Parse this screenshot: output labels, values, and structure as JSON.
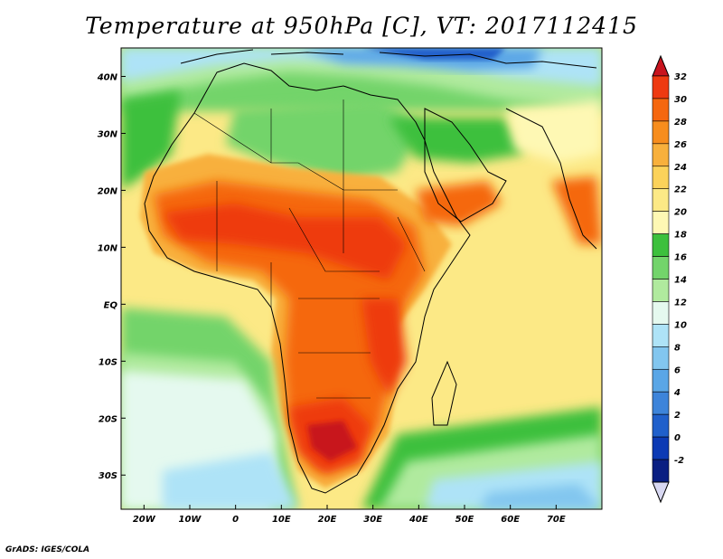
{
  "title": "Temperature at 950hPa [C], VT: 2017112415",
  "credit": "GrADS: IGES/COLA",
  "map": {
    "lon_range": [
      -25,
      80
    ],
    "lat_range": [
      -36,
      45
    ],
    "lon_ticks": [
      {
        "lon": -20,
        "label": "20W"
      },
      {
        "lon": -10,
        "label": "10W"
      },
      {
        "lon": 0,
        "label": "0"
      },
      {
        "lon": 10,
        "label": "10E"
      },
      {
        "lon": 20,
        "label": "20E"
      },
      {
        "lon": 30,
        "label": "30E"
      },
      {
        "lon": 40,
        "label": "40E"
      },
      {
        "lon": 50,
        "label": "50E"
      },
      {
        "lon": 60,
        "label": "60E"
      },
      {
        "lon": 70,
        "label": "70E"
      }
    ],
    "lat_ticks": [
      {
        "lat": 40,
        "label": "40N"
      },
      {
        "lat": 30,
        "label": "30N"
      },
      {
        "lat": 20,
        "label": "20N"
      },
      {
        "lat": 10,
        "label": "10N"
      },
      {
        "lat": 0,
        "label": "EQ"
      },
      {
        "lat": -10,
        "label": "10S"
      },
      {
        "lat": -20,
        "label": "20S"
      },
      {
        "lat": -30,
        "label": "30S"
      }
    ]
  },
  "colorbar": {
    "levels": [
      "32",
      "30",
      "28",
      "26",
      "24",
      "22",
      "20",
      "18",
      "16",
      "14",
      "12",
      "10",
      "8",
      "6",
      "4",
      "2",
      "0",
      "-2"
    ],
    "colors": [
      "#c8141e",
      "#ee3a11",
      "#f5670f",
      "#f78d1d",
      "#f8b03c",
      "#fbd25a",
      "#fce986",
      "#fef8b4",
      "#3dc03d",
      "#73d46b",
      "#b0ea9e",
      "#e5f9ef",
      "#aee3f7",
      "#82c6ef",
      "#5aa6e6",
      "#3d84da",
      "#2060cb",
      "#0c3ab4",
      "#0a1f82",
      "#d8d8f2"
    ]
  }
}
